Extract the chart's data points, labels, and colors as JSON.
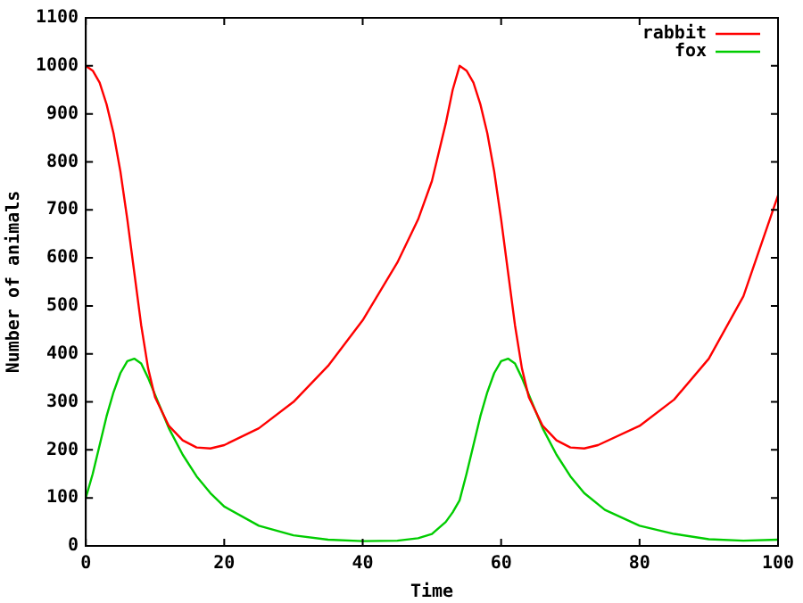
{
  "chart_data": {
    "type": "line",
    "xlabel": "Time",
    "ylabel": "Number of animals",
    "xlim": [
      0,
      100
    ],
    "xticks": [
      0,
      20,
      40,
      60,
      80,
      100
    ],
    "ylim": [
      0,
      1100
    ],
    "yticks": [
      0,
      100,
      200,
      300,
      400,
      500,
      600,
      700,
      800,
      900,
      1000,
      1100
    ],
    "grid": false,
    "legend": "top right",
    "marker": "none",
    "line_style": "solid",
    "series": [
      {
        "name": "rabbit",
        "color": "#ff0000",
        "x": [
          0,
          1,
          2,
          3,
          4,
          5,
          6,
          7,
          8,
          9,
          10,
          12,
          14,
          16,
          18,
          20,
          25,
          30,
          35,
          40,
          45,
          48,
          50,
          52,
          53,
          54,
          55,
          56,
          57,
          58,
          59,
          60,
          61,
          62,
          63,
          64,
          66,
          68,
          70,
          72,
          74,
          80,
          85,
          90,
          95,
          100
        ],
        "values": [
          1000,
          990,
          965,
          920,
          860,
          780,
          680,
          570,
          460,
          370,
          310,
          250,
          220,
          205,
          203,
          210,
          245,
          300,
          375,
          470,
          590,
          680,
          760,
          880,
          950,
          1000,
          990,
          965,
          920,
          860,
          780,
          680,
          570,
          460,
          370,
          310,
          250,
          220,
          205,
          203,
          210,
          250,
          305,
          390,
          520,
          730
        ]
      },
      {
        "name": "fox",
        "color": "#00cc00",
        "x": [
          0,
          1,
          2,
          3,
          4,
          5,
          6,
          7,
          8,
          9,
          10,
          11,
          12,
          14,
          16,
          18,
          20,
          25,
          30,
          35,
          40,
          45,
          48,
          50,
          52,
          53,
          54,
          55,
          56,
          57,
          58,
          59,
          60,
          61,
          62,
          63,
          64,
          66,
          68,
          70,
          72,
          75,
          80,
          85,
          90,
          95,
          100
        ],
        "values": [
          100,
          150,
          210,
          270,
          320,
          360,
          385,
          390,
          380,
          350,
          315,
          280,
          245,
          190,
          145,
          110,
          82,
          42,
          22,
          13,
          10,
          11,
          16,
          25,
          50,
          70,
          95,
          150,
          210,
          270,
          320,
          360,
          385,
          390,
          380,
          350,
          315,
          245,
          190,
          145,
          110,
          75,
          42,
          25,
          14,
          11,
          13
        ]
      }
    ]
  }
}
